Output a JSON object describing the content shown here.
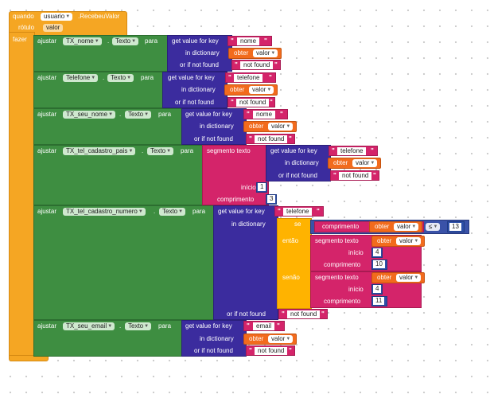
{
  "event": {
    "when": "quando",
    "component": "usuario",
    "event_name": ".RecebeuValor",
    "param_label": "rótulo",
    "param": "valor",
    "do": "fazer"
  },
  "labels": {
    "set": "ajustar",
    "to": "para",
    "dot": ".",
    "get_key": "get value for key",
    "in_dict": "in dictionary",
    "if_not_found": "or if not found",
    "get_var": "obter",
    "segment": "segmento texto",
    "start": "início",
    "length": "comprimento",
    "length_fn": "comprimento",
    "if": "se",
    "then": "então",
    "else": "senão",
    "compare_op": "≤"
  },
  "blocks": [
    {
      "component": "TX_nome",
      "property": "Texto",
      "key": "nome",
      "var": "valor",
      "not_found": "not found"
    },
    {
      "component": "Telefone",
      "property": "Texto",
      "key": "telefone",
      "var": "valor",
      "not_found": "not found"
    },
    {
      "component": "TX_seu_nome",
      "property": "Texto",
      "key": "nome",
      "var": "valor",
      "not_found": "not found"
    },
    {
      "component": "TX_tel_cadastro_pais",
      "property": "Texto",
      "key": "telefone",
      "var": "valor",
      "not_found": "not found",
      "start": "1",
      "length": "3"
    },
    {
      "component": "TX_tel_cadastro_numero",
      "property": "Texto",
      "key": "telefone",
      "not_found": "not found",
      "cond_var": "valor",
      "cond_num": "13",
      "then_var": "valor",
      "then_start": "4",
      "then_len": "10",
      "else_var": "valor",
      "else_start": "4",
      "else_len": "11"
    },
    {
      "component": "TX_seu_email",
      "property": "Texto",
      "key": "email",
      "var": "valor",
      "not_found": "not found"
    }
  ]
}
